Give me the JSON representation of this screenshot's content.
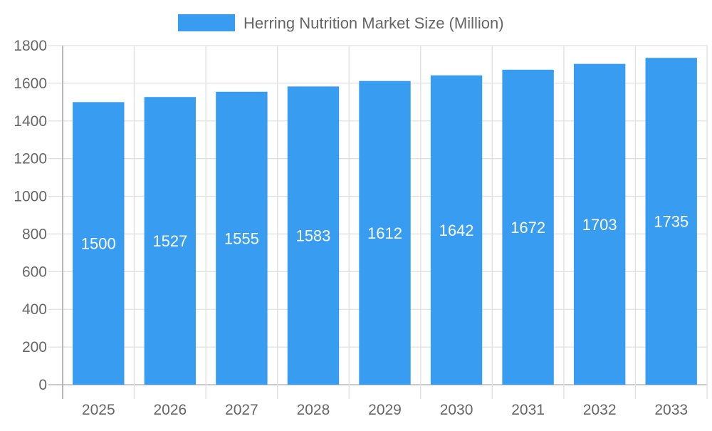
{
  "chart_data": {
    "type": "bar",
    "categories": [
      "2025",
      "2026",
      "2027",
      "2028",
      "2029",
      "2030",
      "2031",
      "2032",
      "2033"
    ],
    "series": [
      {
        "name": "Herring Nutrition Market Size (Million)",
        "values": [
          1500,
          1527,
          1555,
          1583,
          1612,
          1642,
          1672,
          1703,
          1735
        ],
        "color": "#389CF0"
      }
    ],
    "ylim": [
      0,
      1800
    ],
    "yticks": [
      0,
      200,
      400,
      600,
      800,
      1000,
      1200,
      1400,
      1600,
      1800
    ],
    "grid": true,
    "legend": "top-center",
    "data_labels": true
  }
}
